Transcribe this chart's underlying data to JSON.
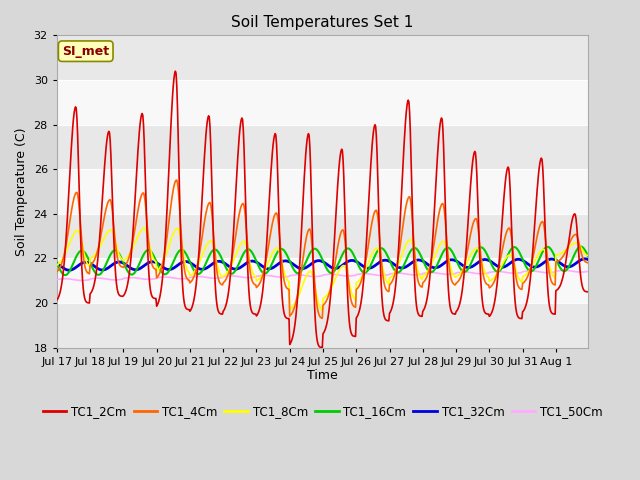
{
  "title": "Soil Temperatures Set 1",
  "xlabel": "Time",
  "ylabel": "Soil Temperature (C)",
  "ylim": [
    18,
    32
  ],
  "yticks": [
    18,
    20,
    22,
    24,
    26,
    28,
    30,
    32
  ],
  "background_color": "#d8d8d8",
  "plot_bg_color": "#ffffff",
  "series_colors": {
    "TC1_2Cm": "#dd0000",
    "TC1_4Cm": "#ff6600",
    "TC1_8Cm": "#ffff00",
    "TC1_16Cm": "#00cc00",
    "TC1_32Cm": "#0000dd",
    "TC1_50Cm": "#ffaaff"
  },
  "series_linewidths": {
    "TC1_2Cm": 1.2,
    "TC1_4Cm": 1.2,
    "TC1_8Cm": 1.2,
    "TC1_16Cm": 1.5,
    "TC1_32Cm": 2.0,
    "TC1_50Cm": 1.2
  },
  "annotation_text": "SI_met",
  "annotation_color": "#880000",
  "annotation_bg": "#ffffbb",
  "annotation_border": "#888800",
  "title_fontsize": 11,
  "axis_label_fontsize": 9,
  "tick_fontsize": 8,
  "legend_fontsize": 8.5,
  "band_colors": [
    "#e8e8e8",
    "#f8f8f8"
  ],
  "band_ranges": [
    [
      32,
      30
    ],
    [
      30,
      28
    ],
    [
      28,
      26
    ],
    [
      26,
      24
    ],
    [
      24,
      22
    ],
    [
      22,
      20
    ],
    [
      20,
      18
    ]
  ],
  "band_pattern": [
    0,
    1,
    0,
    1,
    0,
    1,
    0
  ],
  "tick_labels": [
    "Jul 17",
    "Jul 18",
    "Jul 19",
    "Jul 20",
    "Jul 21",
    "Jul 22",
    "Jul 23",
    "Jul 24",
    "Jul 25",
    "Jul 26",
    "Jul 27",
    "Jul 28",
    "Jul 29",
    "Jul 30",
    "Jul 31",
    "Aug 1"
  ],
  "daily_max_2cm": [
    28.8,
    27.7,
    28.5,
    30.4,
    28.4,
    28.3,
    27.6,
    27.6,
    26.9,
    28.0,
    29.1,
    28.3,
    26.8,
    26.1,
    26.5,
    24.0
  ],
  "daily_min_2cm": [
    20.0,
    20.3,
    20.2,
    19.7,
    19.5,
    19.5,
    19.3,
    18.0,
    18.5,
    19.2,
    19.4,
    19.5,
    19.5,
    19.3,
    19.5,
    20.5
  ]
}
